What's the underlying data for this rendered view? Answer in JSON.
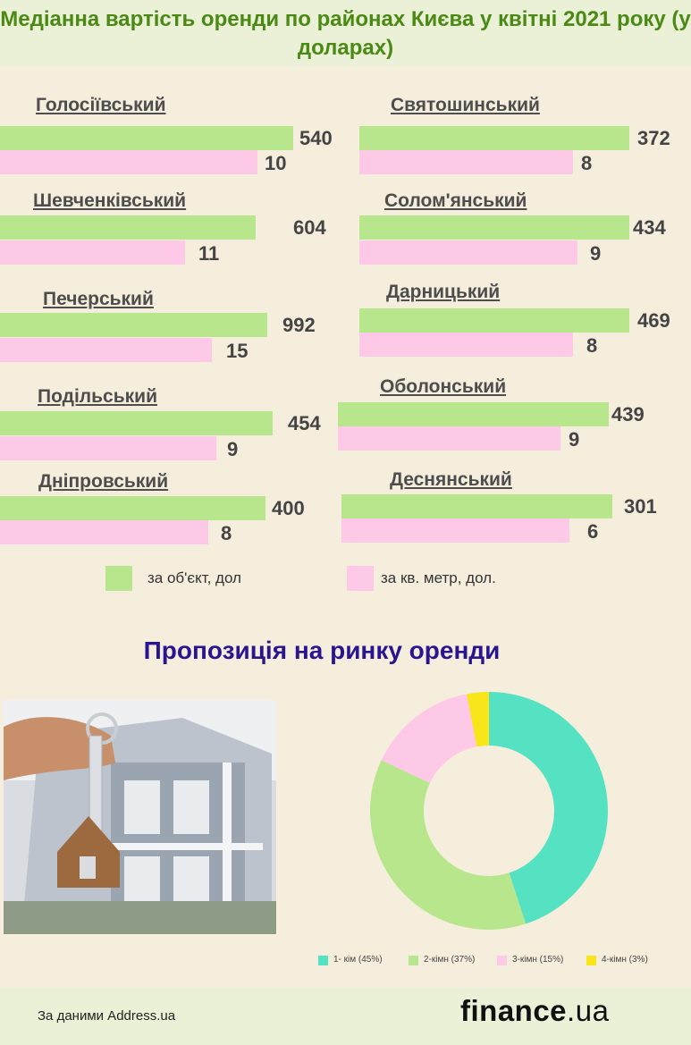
{
  "title": "Медіанна вартість оренди по районах Києва у квітні 2021 року (у доларах)",
  "chart_data": [
    {
      "type": "bar",
      "orientation": "horizontal",
      "categories": [
        "Голосіївський",
        "Шевченківський",
        "Печерський",
        "Подільський",
        "Дніпровський",
        "Святошинський",
        "Солом'янський",
        "Дарницький",
        "Оболонський",
        "Деснянський"
      ],
      "series": [
        {
          "name": "за об'єкт, дол",
          "color": "#b8e68c",
          "values": [
            540,
            604,
            992,
            454,
            400,
            372,
            434,
            469,
            439,
            301
          ]
        },
        {
          "name": "за кв. метр, дол.",
          "color": "#fdc9e6",
          "values": [
            10,
            11,
            15,
            9,
            8,
            8,
            9,
            8,
            9,
            6
          ]
        }
      ],
      "legend_position": "bottom"
    },
    {
      "type": "pie",
      "title": "Пропозиція на ринку оренди",
      "donut": true,
      "categories": [
        "1- кім (45%)",
        "2-кімн (37%)",
        "3-кімн (15%)",
        "4-кімн (3%)"
      ],
      "values": [
        45,
        37,
        15,
        3
      ],
      "colors": [
        "#54e2c2",
        "#b8e68c",
        "#fdc9e6",
        "#f8e51a"
      ],
      "legend_position": "bottom"
    }
  ],
  "legend": {
    "per_object": "за об'єкт, дол",
    "per_sqm": "за кв. метр, дол."
  },
  "subtitle": "Пропозиція на ринку оренди",
  "footer": {
    "source": "За даними Address.ua",
    "brand_main": "finance",
    "brand_suffix": ".ua"
  }
}
